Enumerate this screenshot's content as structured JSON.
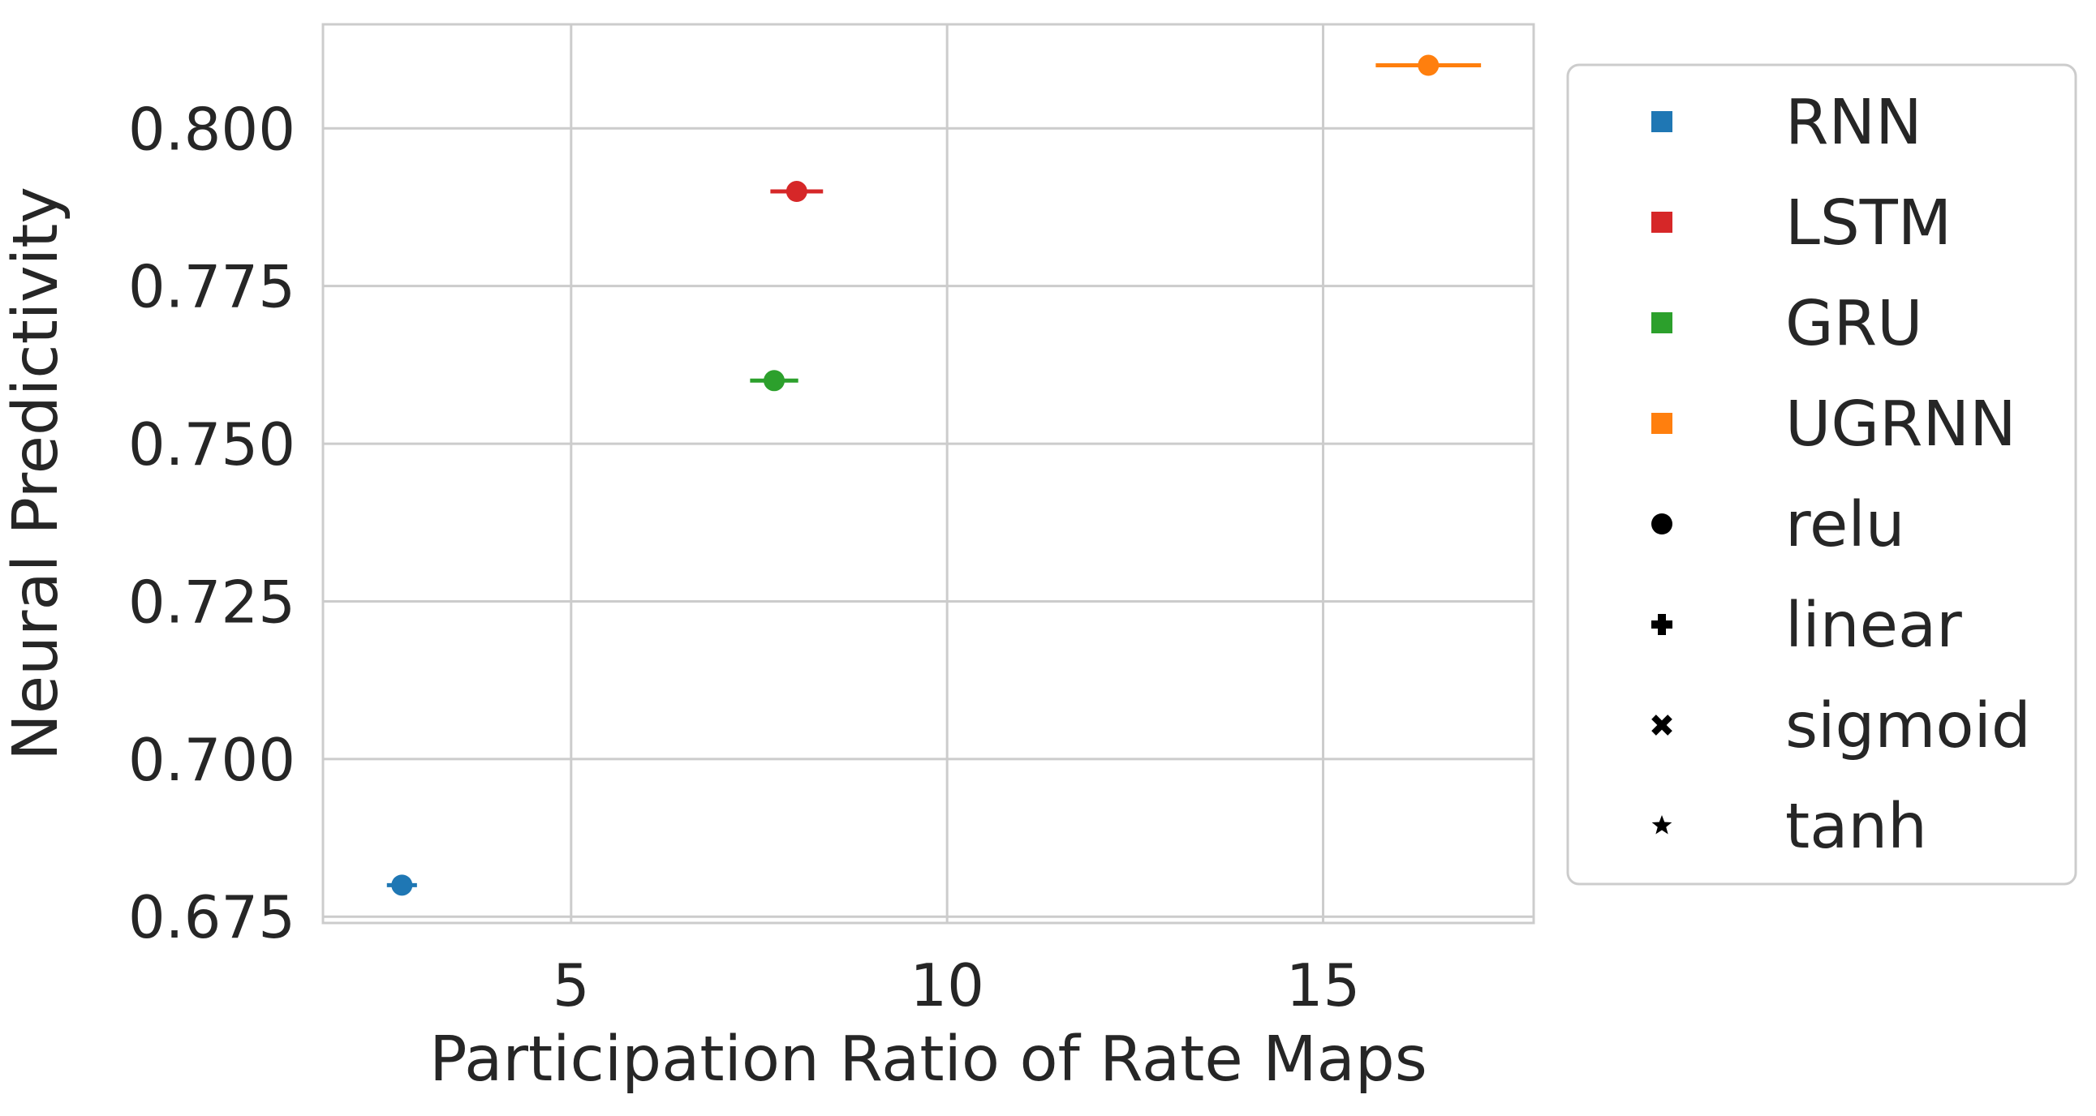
{
  "chart_data": {
    "type": "scatter",
    "xlabel": "Participation Ratio of Rate Maps",
    "ylabel": "Neural Predictivity",
    "xlim": [
      1.7,
      17.8
    ],
    "ylim": [
      0.674,
      0.8165
    ],
    "xticks": [
      5,
      10,
      15
    ],
    "xtick_labels": [
      "5",
      "10",
      "15"
    ],
    "yticks": [
      0.675,
      0.7,
      0.725,
      0.75,
      0.775,
      0.8
    ],
    "ytick_labels": [
      "0.675",
      "0.700",
      "0.725",
      "0.750",
      "0.775",
      "0.800"
    ],
    "grid": true,
    "legend_position": "outside-right",
    "series": [
      {
        "name": "RNN",
        "color": "#1f77b4",
        "marker": "relu",
        "x": 2.75,
        "y": 0.68,
        "xerr": 0.2
      },
      {
        "name": "LSTM",
        "color": "#d62728",
        "marker": "relu",
        "x": 8.0,
        "y": 0.79,
        "xerr": 0.35
      },
      {
        "name": "GRU",
        "color": "#2ca02c",
        "marker": "relu",
        "x": 7.7,
        "y": 0.76,
        "xerr": 0.32
      },
      {
        "name": "UGRNN",
        "color": "#ff7f0e",
        "marker": "relu",
        "x": 16.4,
        "y": 0.81,
        "xerr": 0.7
      }
    ],
    "legend": [
      {
        "label": "RNN",
        "symbol": "square",
        "color": "#1f77b4"
      },
      {
        "label": "LSTM",
        "symbol": "square",
        "color": "#d62728"
      },
      {
        "label": "GRU",
        "symbol": "square",
        "color": "#2ca02c"
      },
      {
        "label": "UGRNN",
        "symbol": "square",
        "color": "#ff7f0e"
      },
      {
        "label": "relu",
        "symbol": "circle",
        "color": "#000000"
      },
      {
        "label": "linear",
        "symbol": "plus",
        "color": "#000000"
      },
      {
        "label": "sigmoid",
        "symbol": "cross",
        "color": "#000000"
      },
      {
        "label": "tanh",
        "symbol": "star",
        "color": "#000000"
      }
    ]
  }
}
